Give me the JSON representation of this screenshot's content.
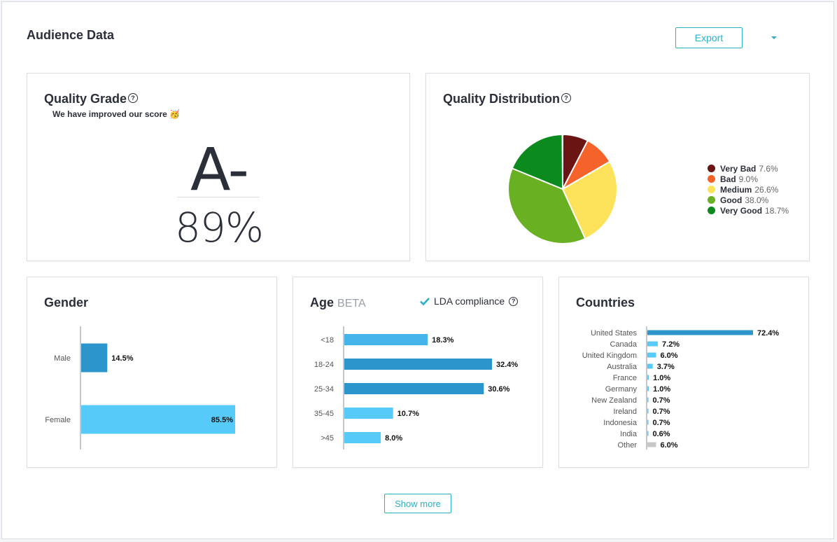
{
  "page": {
    "title": "Audience Data",
    "export_label": "Export",
    "show_more_label": "Show more"
  },
  "quality_grade": {
    "title": "Quality Grade",
    "subtitle": "We have improved our score 🥳",
    "grade": "A-",
    "percent": "89%"
  },
  "quality_distribution": {
    "title": "Quality Distribution",
    "items": [
      {
        "label": "Very Bad",
        "value": "7.6%",
        "pct": 7.6,
        "color": "#6b1414"
      },
      {
        "label": "Bad",
        "value": "9.0%",
        "pct": 9.0,
        "color": "#f5622a"
      },
      {
        "label": "Medium",
        "value": "26.6%",
        "pct": 26.6,
        "color": "#fde35b"
      },
      {
        "label": "Good",
        "value": "38.0%",
        "pct": 38.0,
        "color": "#6ab023"
      },
      {
        "label": "Very Good",
        "value": "18.7%",
        "pct": 18.7,
        "color": "#0b8a1e"
      }
    ]
  },
  "gender": {
    "title": "Gender",
    "items": [
      {
        "label": "Male",
        "value": "14.5%",
        "pct": 14.5,
        "color": "#2b95cc"
      },
      {
        "label": "Female",
        "value": "85.5%",
        "pct": 85.5,
        "color": "#56cbfa"
      }
    ]
  },
  "age": {
    "title": "Age",
    "beta": "BETA",
    "lda_label": "LDA compliance",
    "items": [
      {
        "label": "<18",
        "value": "18.3%",
        "pct": 18.3,
        "color": "#45b4ea"
      },
      {
        "label": "18-24",
        "value": "32.4%",
        "pct": 32.4,
        "color": "#2b95cc"
      },
      {
        "label": "25-34",
        "value": "30.6%",
        "pct": 30.6,
        "color": "#2b95cc"
      },
      {
        "label": "35-45",
        "value": "10.7%",
        "pct": 10.7,
        "color": "#56cbfa"
      },
      {
        "label": ">45",
        "value": "8.0%",
        "pct": 8.0,
        "color": "#56cbfa"
      }
    ]
  },
  "countries": {
    "title": "Countries",
    "items": [
      {
        "label": "United States",
        "value": "72.4%",
        "pct": 72.4,
        "color": "#2b95cc"
      },
      {
        "label": "Canada",
        "value": "7.2%",
        "pct": 7.2,
        "color": "#56cbfa"
      },
      {
        "label": "United Kingdom",
        "value": "6.0%",
        "pct": 6.0,
        "color": "#56cbfa"
      },
      {
        "label": "Australia",
        "value": "3.7%",
        "pct": 3.7,
        "color": "#56cbfa"
      },
      {
        "label": "France",
        "value": "1.0%",
        "pct": 1.0,
        "color": "#56cbfa"
      },
      {
        "label": "Germany",
        "value": "1.0%",
        "pct": 1.0,
        "color": "#56cbfa"
      },
      {
        "label": "New Zealand",
        "value": "0.7%",
        "pct": 0.7,
        "color": "#56cbfa"
      },
      {
        "label": "Ireland",
        "value": "0.7%",
        "pct": 0.7,
        "color": "#56cbfa"
      },
      {
        "label": "Indonesia",
        "value": "0.7%",
        "pct": 0.7,
        "color": "#56cbfa"
      },
      {
        "label": "India",
        "value": "0.6%",
        "pct": 0.6,
        "color": "#56cbfa"
      },
      {
        "label": "Other",
        "value": "6.0%",
        "pct": 6.0,
        "color": "#c8c8c8"
      }
    ]
  }
}
